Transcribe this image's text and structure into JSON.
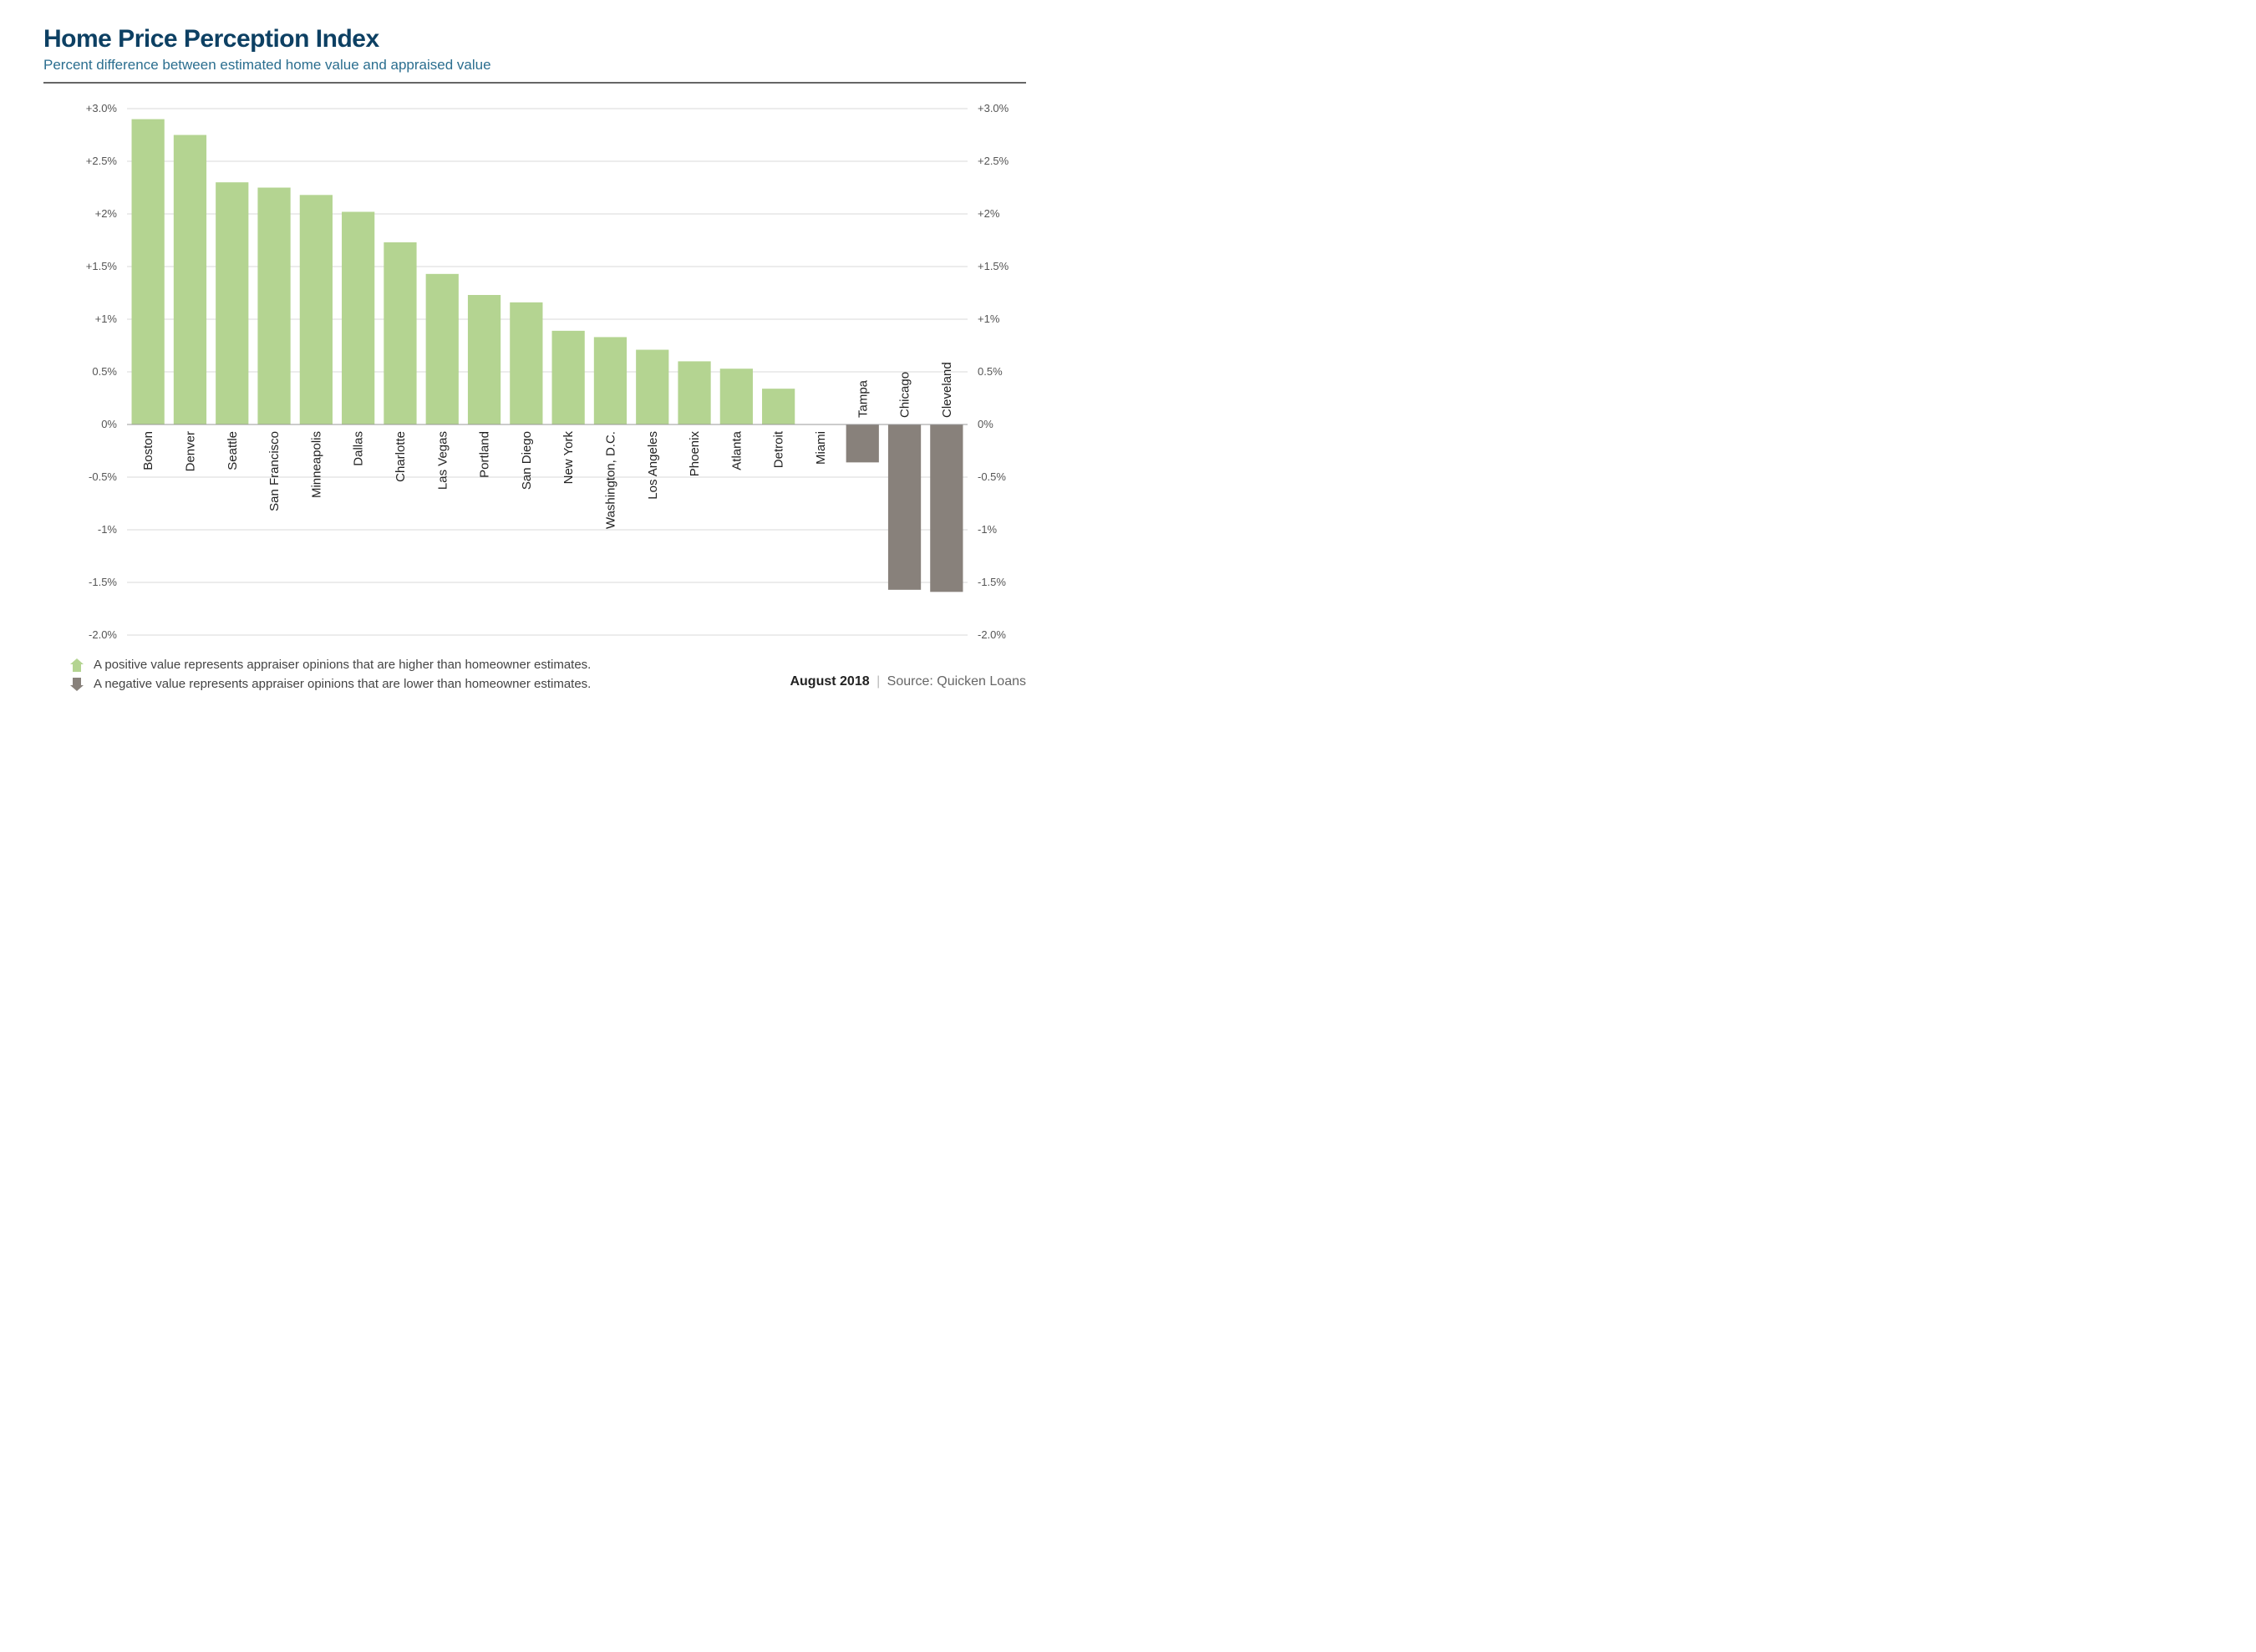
{
  "title": "Home Price Perception Index",
  "subtitle": "Percent difference between estimated home value and appraised value",
  "chart": {
    "type": "bar",
    "ylim": [
      -2.0,
      3.0
    ],
    "ytick_step": 0.5,
    "yticks": [
      {
        "v": 3.0,
        "label": "+3.0%"
      },
      {
        "v": 2.5,
        "label": "+2.5%"
      },
      {
        "v": 2.0,
        "label": "+2%"
      },
      {
        "v": 1.5,
        "label": "+1.5%"
      },
      {
        "v": 1.0,
        "label": "+1%"
      },
      {
        "v": 0.5,
        "label": "0.5%"
      },
      {
        "v": 0.0,
        "label": "0%"
      },
      {
        "v": -0.5,
        "label": "-0.5%"
      },
      {
        "v": -1.0,
        "label": "-1%"
      },
      {
        "v": -1.5,
        "label": "-1.5%"
      },
      {
        "v": -2.0,
        "label": "-2.0%"
      }
    ],
    "positive_color": "#b4d491",
    "negative_color": "#88817b",
    "grid_color": "#d9d9d9",
    "axis_color": "#999999",
    "background_color": "#ffffff",
    "tick_label_color": "#555555",
    "city_label_color": "#222222",
    "city_label_fontsize": 15,
    "axis_label_fontsize": 13,
    "bar_gap_ratio": 0.22,
    "data": [
      {
        "city": "Boston",
        "value": 2.9
      },
      {
        "city": "Denver",
        "value": 2.75
      },
      {
        "city": "Seattle",
        "value": 2.3
      },
      {
        "city": "San Francisco",
        "value": 2.25
      },
      {
        "city": "Minneapolis",
        "value": 2.18
      },
      {
        "city": "Dallas",
        "value": 2.02
      },
      {
        "city": "Charlotte",
        "value": 1.73
      },
      {
        "city": "Las Vegas",
        "value": 1.43
      },
      {
        "city": "Portland",
        "value": 1.23
      },
      {
        "city": "San Diego",
        "value": 1.16
      },
      {
        "city": "New York",
        "value": 0.89
      },
      {
        "city": "Washington, D.C.",
        "value": 0.83
      },
      {
        "city": "Los Angeles",
        "value": 0.71
      },
      {
        "city": "Phoenix",
        "value": 0.6
      },
      {
        "city": "Atlanta",
        "value": 0.53
      },
      {
        "city": "Detroit",
        "value": 0.34
      },
      {
        "city": "Miami",
        "value": 0.0
      },
      {
        "city": "Tampa",
        "value": -0.36
      },
      {
        "city": "Chicago",
        "value": -1.57
      },
      {
        "city": "Cleveland",
        "value": -1.59
      }
    ]
  },
  "legend": {
    "positive_text": "A positive value represents appraiser opinions that are higher than homeowner estimates.",
    "negative_text": "A negative value represents appraiser opinions that are lower than homeowner estimates."
  },
  "footer": {
    "date": "August 2018",
    "source_label": "Source: Quicken Loans"
  }
}
